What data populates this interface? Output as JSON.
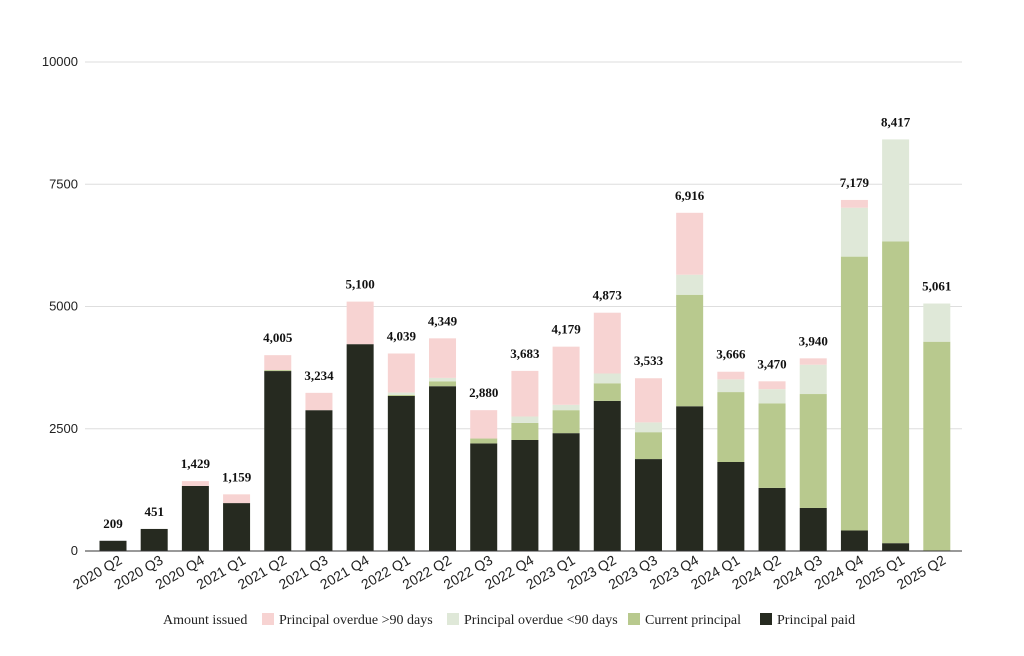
{
  "chart_data": {
    "type": "bar",
    "stacked": true,
    "title": "",
    "xlabel": "",
    "ylabel": "",
    "ylim": [
      0,
      10000
    ],
    "yticks": [
      0,
      2500,
      5000,
      7500,
      10000
    ],
    "grid": true,
    "legend_position": "bottom",
    "categories": [
      "2020 Q2",
      "2020 Q3",
      "2020 Q4",
      "2021 Q1",
      "2021 Q2",
      "2021 Q3",
      "2021 Q4",
      "2022 Q1",
      "2022 Q2",
      "2022 Q3",
      "2022 Q4",
      "2023 Q1",
      "2023 Q2",
      "2023 Q3",
      "2023 Q4",
      "2024 Q1",
      "2024 Q2",
      "2024 Q3",
      "2024 Q4",
      "2025 Q1",
      "2025 Q2"
    ],
    "totals": [
      209,
      451,
      1429,
      1159,
      4005,
      3234,
      5100,
      4039,
      4349,
      2880,
      3683,
      4179,
      4873,
      3533,
      6916,
      3666,
      3470,
      3940,
      7179,
      8417,
      5061
    ],
    "total_labels": [
      "209",
      "451",
      "1,429",
      "1,159",
      "4,005",
      "3,234",
      "5,100",
      "4,039",
      "4,349",
      "2,880",
      "3,683",
      "4,179",
      "4,873",
      "3,533",
      "6,916",
      "3,666",
      "3,470",
      "3,940",
      "7,179",
      "8,417",
      "5,061"
    ],
    "legend_header": "Amount issued",
    "series": [
      {
        "name": "Principal paid",
        "color": "#262a20",
        "values": [
          209,
          451,
          1330,
          980,
          3680,
          2880,
          4230,
          3170,
          3370,
          2200,
          2270,
          2410,
          3070,
          1880,
          2960,
          1820,
          1290,
          880,
          420,
          160,
          0
        ]
      },
      {
        "name": "Current principal",
        "color": "#b8c98e",
        "values": [
          0,
          0,
          0,
          0,
          20,
          0,
          0,
          20,
          100,
          100,
          350,
          470,
          360,
          550,
          2280,
          1430,
          1730,
          2330,
          5600,
          6170,
          4280
        ]
      },
      {
        "name": "Principal overdue <90 days",
        "color": "#dfe8d8",
        "values": [
          0,
          0,
          0,
          0,
          0,
          0,
          0,
          50,
          70,
          0,
          130,
          110,
          200,
          200,
          410,
          260,
          290,
          600,
          1000,
          2087,
          781
        ]
      },
      {
        "name": "Principal overdue >90 days",
        "color": "#f7d3d2",
        "values": [
          0,
          0,
          99,
          179,
          305,
          354,
          870,
          799,
          809,
          580,
          933,
          1189,
          1243,
          903,
          1266,
          156,
          160,
          130,
          159,
          0,
          0
        ]
      }
    ],
    "legend_order": [
      "Principal overdue >90 days",
      "Principal overdue <90 days",
      "Current principal",
      "Principal paid"
    ]
  }
}
